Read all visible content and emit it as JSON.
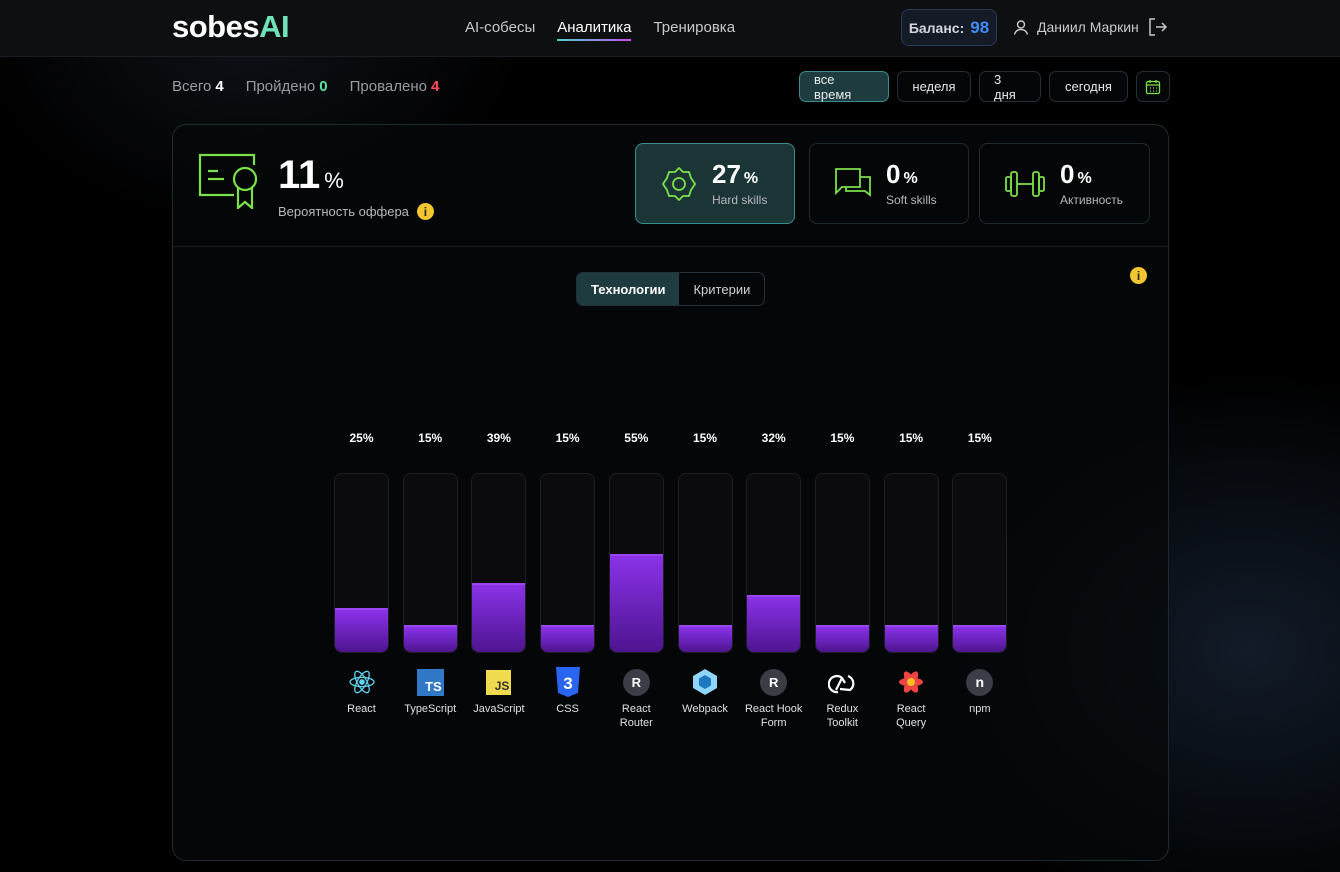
{
  "header": {
    "logo_main": "sobes",
    "logo_accent": "AI",
    "nav": [
      {
        "label": "AI-собесы"
      },
      {
        "label": "Аналитика",
        "active": true
      },
      {
        "label": "Тренировка"
      }
    ],
    "balance_label": "Баланс:",
    "balance_value": "98",
    "user_name": "Даниил Маркин"
  },
  "stats": {
    "total_label": "Всего",
    "total": "4",
    "passed_label": "Пройдено",
    "passed": "0",
    "failed_label": "Провалено",
    "failed": "4"
  },
  "periods": [
    {
      "label": "все время",
      "active": true
    },
    {
      "label": "неделя"
    },
    {
      "label": "3 дня"
    },
    {
      "label": "сегодня"
    }
  ],
  "offer": {
    "value": "11",
    "unit": "%",
    "label": "Вероятность оффера"
  },
  "metrics": [
    {
      "value": "27",
      "unit": "%",
      "label": "Hard skills",
      "icon": "gear-icon",
      "active": true
    },
    {
      "value": "0",
      "unit": "%",
      "label": "Soft skills",
      "icon": "chat-icon"
    },
    {
      "value": "0",
      "unit": "%",
      "label": "Активность",
      "icon": "dumbbell-icon"
    }
  ],
  "tabs": [
    {
      "label": "Технологии",
      "active": true
    },
    {
      "label": "Критерии"
    }
  ],
  "colors": {
    "accent": "#6fe3b8",
    "bar": "#8a32e8",
    "balance": "#3f8cff",
    "passed": "#5de0a0",
    "failed": "#ff4d5a",
    "icon_green": "#7be04a"
  },
  "chart_data": {
    "type": "bar",
    "categories": [
      "React",
      "TypeScript",
      "JavaScript",
      "CSS",
      "React Router",
      "Webpack",
      "React Hook Form",
      "Redux Toolkit",
      "React Query",
      "npm"
    ],
    "values": [
      25,
      15,
      39,
      15,
      55,
      15,
      32,
      15,
      15,
      15
    ],
    "labels": [
      "25%",
      "15%",
      "39%",
      "15%",
      "55%",
      "15%",
      "32%",
      "15%",
      "15%",
      "15%"
    ],
    "ylim": [
      0,
      100
    ]
  }
}
